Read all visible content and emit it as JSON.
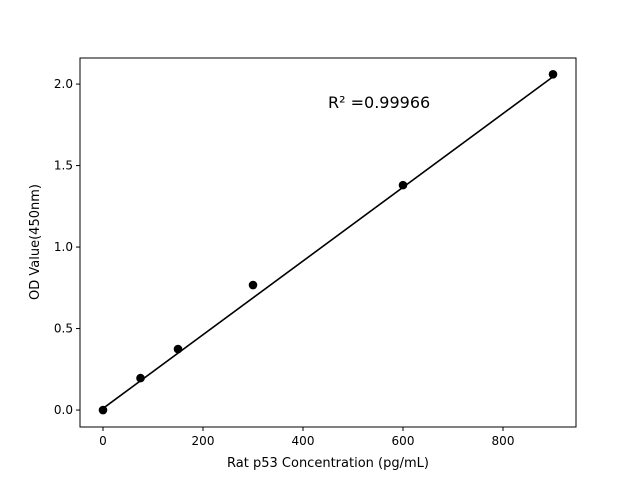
{
  "chart_data": {
    "type": "scatter",
    "title": "",
    "xlabel": "Rat p53 Concentration (pg/mL)",
    "ylabel": "OD Value(450nm)",
    "xlim": [
      -46,
      946
    ],
    "ylim": [
      -0.104,
      2.16
    ],
    "xticks": [
      0,
      200,
      400,
      600,
      800
    ],
    "yticks": [
      0.0,
      0.5,
      1.0,
      1.5,
      2.0
    ],
    "xtick_labels": [
      "0",
      "200",
      "400",
      "600",
      "800"
    ],
    "ytick_labels": [
      "0.0",
      "0.5",
      "1.0",
      "1.5",
      "2.0"
    ],
    "grid": false,
    "points": {
      "x": [
        0,
        75,
        150,
        300,
        600,
        900
      ],
      "y": [
        0.0,
        0.196,
        0.374,
        0.767,
        1.38,
        2.06
      ],
      "color": "#000000"
    },
    "fit_line": {
      "x": [
        0,
        900
      ],
      "y": [
        0.01,
        2.045
      ],
      "color": "#000000"
    },
    "annotation": "R² =0.99966"
  }
}
